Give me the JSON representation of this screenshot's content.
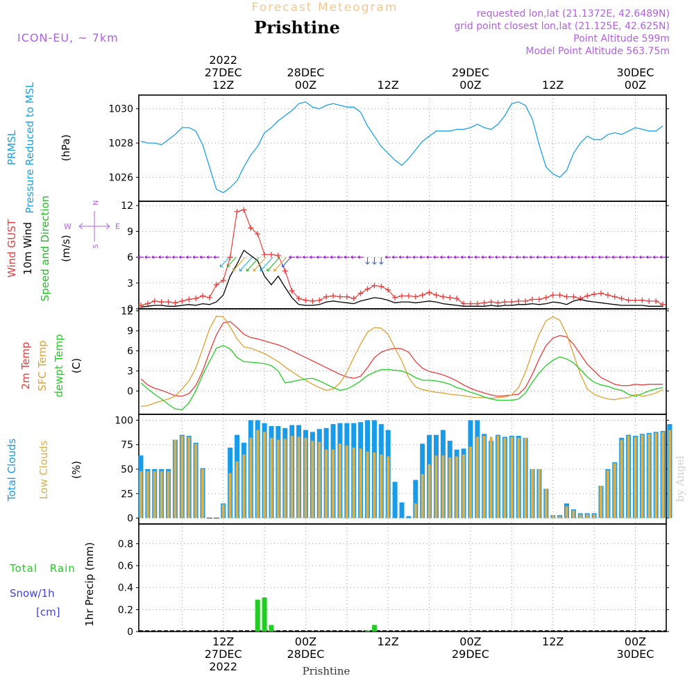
{
  "header": {
    "super_title": "Forecast Meteogram",
    "location": "Prishtine",
    "model": "ICON-EU, ~ 7km",
    "requested": "requested lon,lat (21.1372E, 42.6489N)",
    "gridpoint": "grid point closest lon,lat (21.125E, 42.625N)",
    "point_alt": "Point Altitude 599m",
    "model_alt": "Model Point Altitude 563.75m",
    "credit": "by Angel",
    "footer": "Prishtine"
  },
  "colors": {
    "pressure": "#1aa0e6",
    "gust": "#e83c3c",
    "wind": "#000000",
    "dir": "#22bb22",
    "dir_alt": "#3060e0",
    "dir_ptr": "#8a1ec8",
    "temp2m": "#e83c3c",
    "sfc": "#e0a030",
    "dewpt": "#22cc22",
    "total_cloud": "#1a9be8",
    "low_cloud": "#d8b050",
    "rain": "#22cc22",
    "snow_label": "#4040dd",
    "label_purple": "#b060e0",
    "label_orange": "#f0c890"
  },
  "time_axis": {
    "top_labels": [
      {
        "h": 12,
        "l1": "2022",
        "l2": "27DEC",
        "l3": "12Z"
      },
      {
        "h": 24,
        "l2": "28DEC",
        "l3": "00Z"
      },
      {
        "h": 36,
        "l3": "12Z"
      },
      {
        "h": 48,
        "l2": "29DEC",
        "l3": "00Z"
      },
      {
        "h": 60,
        "l3": "12Z"
      },
      {
        "h": 72,
        "l2": "30DEC",
        "l3": "00Z"
      }
    ],
    "bottom_labels": [
      {
        "h": 12,
        "l1": "12Z",
        "l2": "27DEC",
        "l3": "2022"
      },
      {
        "h": 24,
        "l1": "00Z",
        "l2": "28DEC"
      },
      {
        "h": 36,
        "l1": "12Z"
      },
      {
        "h": 48,
        "l1": "00Z",
        "l2": "29DEC"
      },
      {
        "h": 60,
        "l1": "12Z"
      },
      {
        "h": 72,
        "l1": "00Z",
        "l2": "30DEC"
      }
    ]
  },
  "chart_data": [
    {
      "type": "line",
      "panel": "pressure",
      "title": "",
      "ylabel_lines": [
        "PRMSL",
        "Pressure Reduced to MSL",
        "(hPa)"
      ],
      "ylim": [
        1024.6,
        1030.8
      ],
      "yticks": [
        1026,
        1028,
        1030
      ],
      "x_hour_start": 0,
      "x_hour_step": 1,
      "series": [
        {
          "values": [
            1028.1,
            1028.0,
            1028.0,
            1027.9,
            1028.2,
            1028.5,
            1028.9,
            1028.9,
            1028.7,
            1027.9,
            1026.6,
            1025.3,
            1025.1,
            1025.4,
            1025.8,
            1026.6,
            1027.3,
            1027.8,
            1028.6,
            1028.9,
            1029.3,
            1029.6,
            1029.9,
            1030.3,
            1030.4,
            1030.1,
            1030.0,
            1030.2,
            1030.3,
            1030.2,
            1030.1,
            1030.1,
            1029.8,
            1029.0,
            1028.4,
            1027.8,
            1027.4,
            1027.0,
            1026.7,
            1027.1,
            1027.6,
            1028.1,
            1028.4,
            1028.7,
            1028.7,
            1028.7,
            1028.8,
            1028.8,
            1028.9,
            1029.1,
            1028.9,
            1028.8,
            1029.1,
            1029.6,
            1030.3,
            1030.4,
            1030.2,
            1029.4,
            1027.9,
            1026.6,
            1026.2,
            1026.0,
            1026.4,
            1027.4,
            1028.0,
            1028.4,
            1028.2,
            1028.2,
            1028.5,
            1028.6,
            1028.5,
            1028.7,
            1028.9,
            1028.8,
            1028.7,
            1028.7,
            1029.0
          ]
        }
      ]
    },
    {
      "type": "line",
      "panel": "wind",
      "ylabel_lines": [
        "Wind GUST",
        "10m Wind",
        "Speed and Direction",
        "(m/s)"
      ],
      "ylim": [
        0,
        12.5
      ],
      "yticks": [
        0,
        3,
        6,
        9,
        12
      ],
      "compass": {
        "n": "N",
        "s": "S",
        "w": "W",
        "e": "E"
      },
      "x_hour_start": 0,
      "x_hour_step": 1,
      "series": [
        {
          "name": "Wind GUST",
          "values": [
            0.4,
            0.6,
            0.9,
            0.8,
            0.8,
            0.7,
            0.9,
            1.1,
            1.2,
            1.5,
            1.3,
            2.8,
            3.3,
            6.0,
            11.3,
            11.5,
            9.4,
            8.7,
            6.3,
            6.3,
            6.2,
            4.4,
            2.1,
            1.2,
            1.0,
            0.9,
            1.0,
            1.4,
            1.5,
            1.4,
            1.4,
            1.2,
            1.8,
            2.3,
            2.7,
            2.6,
            2.2,
            1.3,
            1.5,
            1.5,
            1.4,
            1.6,
            1.9,
            1.6,
            1.4,
            1.3,
            1.2,
            0.6,
            0.6,
            0.6,
            0.7,
            0.8,
            0.7,
            0.8,
            0.8,
            0.9,
            0.9,
            1.1,
            1.1,
            1.3,
            1.6,
            1.6,
            1.4,
            1.4,
            1.2,
            1.5,
            1.7,
            1.8,
            1.6,
            1.4,
            1.2,
            1.0,
            1.0,
            1.0,
            0.9,
            0.9,
            0.5
          ]
        },
        {
          "name": "10m Wind",
          "values": [
            0.2,
            0.3,
            0.4,
            0.4,
            0.3,
            0.3,
            0.4,
            0.5,
            0.4,
            0.6,
            0.5,
            0.8,
            1.6,
            3.8,
            5.2,
            6.8,
            6.2,
            5.6,
            3.8,
            2.8,
            3.8,
            2.5,
            1.3,
            0.5,
            0.4,
            0.4,
            0.5,
            0.8,
            0.9,
            0.8,
            0.7,
            0.6,
            0.9,
            1.1,
            1.3,
            1.2,
            1.0,
            0.7,
            0.8,
            0.8,
            0.7,
            0.8,
            0.9,
            0.8,
            0.6,
            0.5,
            0.4,
            0.3,
            0.3,
            0.3,
            0.3,
            0.4,
            0.3,
            0.4,
            0.4,
            0.5,
            0.5,
            0.6,
            0.5,
            0.6,
            0.8,
            0.7,
            0.5,
            0.9,
            1.1,
            0.9,
            0.8,
            0.7,
            0.6,
            0.5,
            0.4,
            0.4,
            0.4,
            0.4,
            0.3,
            0.3,
            0.3
          ]
        }
      ]
    },
    {
      "type": "line",
      "panel": "temperature",
      "ylabel_lines": [
        "2m Temp",
        "SFC Temp",
        "dewpt Temp",
        "(C)"
      ],
      "ylim": [
        -3.5,
        12.3
      ],
      "yticks": [
        0,
        3,
        6,
        9,
        12
      ],
      "x_hour_start": 0,
      "x_hour_step": 1,
      "series": [
        {
          "name": "2m Temp",
          "values": [
            1.8,
            0.9,
            0.4,
            0.1,
            -0.3,
            -0.7,
            -0.8,
            -0.4,
            0.8,
            3.0,
            5.8,
            8.4,
            10.2,
            10.4,
            9.5,
            8.5,
            8.0,
            7.8,
            7.5,
            7.2,
            6.9,
            6.5,
            6.0,
            5.5,
            5.0,
            4.5,
            4.0,
            3.5,
            3.0,
            2.5,
            2.1,
            1.9,
            2.2,
            3.5,
            5.0,
            5.8,
            6.2,
            6.4,
            6.3,
            5.8,
            4.4,
            3.4,
            2.9,
            2.7,
            2.4,
            2.0,
            1.5,
            0.9,
            0.4,
            0.0,
            -0.3,
            -0.6,
            -0.8,
            -0.7,
            -0.6,
            -0.5,
            0.5,
            2.5,
            4.8,
            6.8,
            7.9,
            8.3,
            8.1,
            7.0,
            5.5,
            4.0,
            3.0,
            2.0,
            1.5,
            1.0,
            0.8,
            0.8,
            1.0,
            0.9,
            1.0,
            1.0,
            1.0
          ]
        },
        {
          "name": "SFC Temp",
          "values": [
            -2.3,
            -2.2,
            -1.8,
            -1.5,
            -1.2,
            -0.8,
            0.3,
            1.5,
            3.4,
            6.3,
            9.3,
            11.2,
            11.1,
            9.6,
            7.8,
            6.6,
            6.4,
            6.0,
            5.6,
            5.0,
            4.4,
            3.6,
            2.9,
            2.2,
            1.6,
            1.0,
            0.5,
            0.1,
            0.3,
            1.2,
            2.8,
            5.0,
            7.0,
            8.8,
            9.5,
            9.4,
            8.5,
            6.4,
            4.5,
            2.0,
            0.6,
            0.2,
            0.0,
            -0.2,
            -0.3,
            -0.5,
            -0.6,
            -0.7,
            -0.9,
            -1.0,
            -1.0,
            -1.1,
            -1.0,
            -0.9,
            -0.6,
            0.5,
            2.8,
            5.8,
            8.5,
            10.5,
            11.1,
            10.6,
            8.5,
            5.5,
            2.5,
            0.3,
            -0.5,
            -0.9,
            -1.2,
            -1.3,
            -1.1,
            -1.0,
            -0.5,
            -0.8,
            -0.6,
            -0.3,
            0.2
          ]
        },
        {
          "name": "dewpt Temp",
          "values": [
            1.2,
            0.3,
            -0.5,
            -1.2,
            -2.0,
            -2.7,
            -2.8,
            -1.8,
            0.0,
            2.4,
            4.4,
            6.4,
            6.8,
            6.3,
            5.0,
            4.4,
            4.3,
            4.2,
            4.1,
            3.8,
            3.0,
            1.2,
            1.4,
            1.6,
            1.8,
            1.9,
            1.5,
            1.0,
            0.5,
            0.1,
            0.3,
            0.8,
            1.5,
            2.3,
            2.8,
            3.2,
            3.2,
            3.1,
            3.0,
            2.6,
            2.0,
            1.6,
            1.6,
            1.5,
            1.3,
            1.0,
            0.5,
            0.2,
            -0.2,
            -0.5,
            -0.9,
            -1.2,
            -1.4,
            -1.4,
            -1.4,
            -1.2,
            -0.3,
            1.3,
            2.7,
            3.8,
            4.6,
            5.1,
            4.8,
            4.2,
            3.2,
            2.1,
            1.3,
            0.9,
            0.7,
            0.3,
            0.1,
            -0.5,
            -0.8,
            -0.4,
            0.0,
            0.3,
            0.5
          ]
        }
      ]
    },
    {
      "type": "bar",
      "panel": "clouds",
      "ylabel_lines": [
        "Total Clouds",
        "Low Clouds",
        "(%)"
      ],
      "ylim": [
        -6,
        106
      ],
      "yticks": [
        0,
        25,
        50,
        75,
        100
      ],
      "x_hour_start": 0,
      "x_hour_step": 1,
      "series": [
        {
          "name": "Total Clouds",
          "values": [
            64,
            50,
            50,
            50,
            50,
            80,
            85,
            84,
            77,
            51,
            0,
            0,
            15,
            72,
            85,
            77,
            100,
            100,
            97,
            94,
            94,
            92,
            95,
            95,
            90,
            88,
            91,
            92,
            96,
            97,
            97,
            97,
            98,
            100,
            100,
            96,
            90,
            37,
            16,
            2,
            39,
            76,
            85,
            85,
            90,
            79,
            70,
            71,
            100,
            100,
            86,
            79,
            85,
            83,
            84,
            84,
            82,
            50,
            50,
            30,
            3,
            3,
            15,
            9,
            5,
            5,
            5,
            33,
            50,
            57,
            82,
            85,
            84,
            86,
            87,
            88,
            89,
            96
          ]
        },
        {
          "name": "Low Clouds",
          "values": [
            48,
            48,
            48,
            48,
            48,
            80,
            84,
            83,
            76,
            50,
            0,
            0,
            14,
            46,
            58,
            65,
            82,
            90,
            88,
            82,
            80,
            81,
            84,
            83,
            82,
            79,
            78,
            70,
            70,
            76,
            74,
            72,
            71,
            68,
            67,
            65,
            63,
            0,
            0,
            0,
            15,
            45,
            55,
            64,
            64,
            62,
            63,
            65,
            73,
            83,
            84,
            83,
            84,
            82,
            83,
            82,
            82,
            50,
            50,
            30,
            3,
            2,
            12,
            8,
            4,
            4,
            4,
            33,
            49,
            56,
            80,
            84,
            83,
            85,
            86,
            87,
            88,
            90
          ]
        }
      ]
    },
    {
      "type": "bar",
      "panel": "precip",
      "ylabel_lines": [
        "1hr Precip (mm)"
      ],
      "side_labels": [
        "Total Rain",
        "Snow/1h",
        "[cm]"
      ],
      "ylim": [
        0,
        0.98
      ],
      "yticks": [
        0,
        0.2,
        0.4,
        0.6,
        0.8
      ],
      "ytick_labels": [
        "0",
        "0.2",
        "0.4",
        "0.6",
        "0.8"
      ],
      "series": [
        {
          "name": "Total Rain",
          "points": [
            {
              "h": 17,
              "v": 0.29
            },
            {
              "h": 18,
              "v": 0.31
            },
            {
              "h": 19,
              "v": 0.06
            },
            {
              "h": 33,
              "v": 0.01
            },
            {
              "h": 34,
              "v": 0.06
            }
          ]
        }
      ]
    }
  ]
}
